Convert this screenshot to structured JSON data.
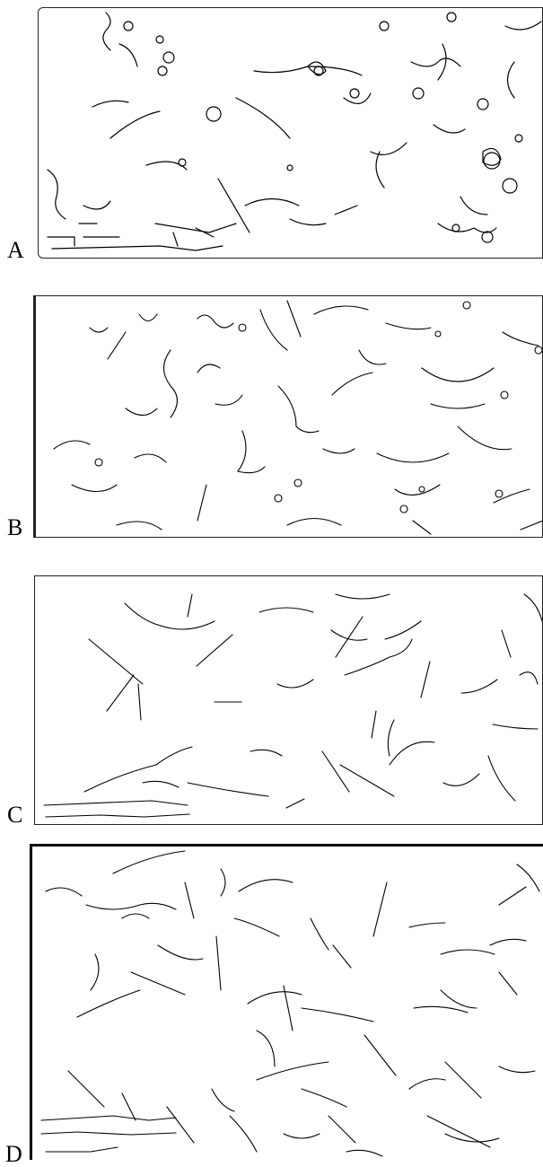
{
  "figure": {
    "panels": [
      {
        "label": "A"
      },
      {
        "label": "B"
      },
      {
        "label": "C"
      },
      {
        "label": "D"
      }
    ]
  },
  "colors": {
    "stroke": "#000000",
    "background": "#ffffff"
  }
}
